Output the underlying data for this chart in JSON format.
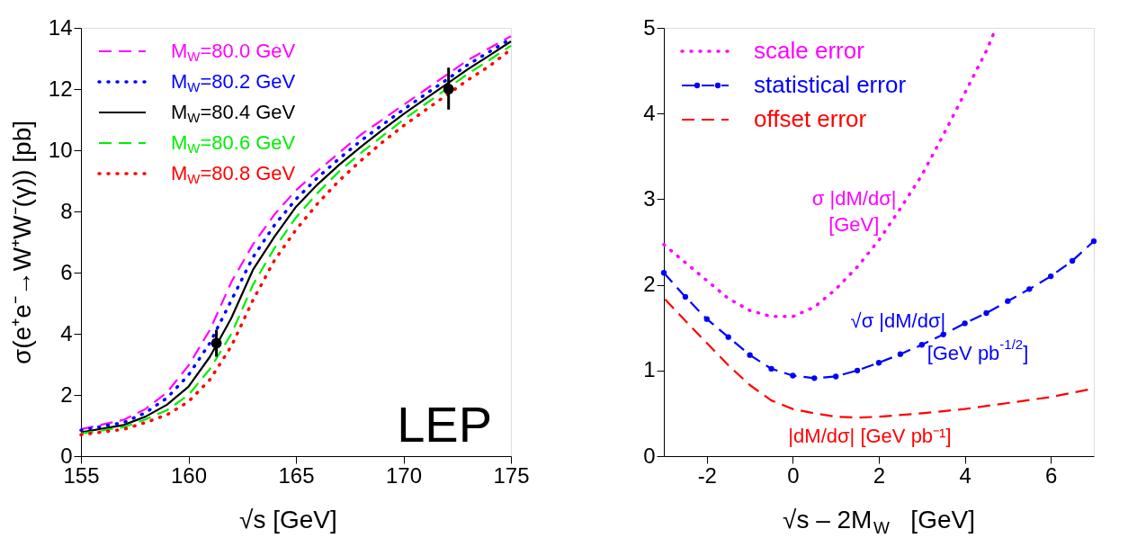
{
  "chart_data": [
    {
      "type": "line",
      "xlabel": "√s   [GeV]",
      "ylabel": "σ(e⁺e⁻→W⁺W⁻(γ))   [pb]",
      "xlim": [
        155,
        175
      ],
      "xticks": [
        155,
        160,
        165,
        170,
        175
      ],
      "ylim": [
        0,
        14
      ],
      "yticks": [
        0,
        2,
        4,
        6,
        8,
        10,
        12,
        14
      ],
      "grid": false,
      "legend": "top left",
      "x": [
        155,
        157,
        158,
        159,
        160,
        161,
        162,
        163,
        164,
        165,
        166,
        167,
        168,
        169,
        170,
        171,
        172,
        173,
        174,
        175
      ],
      "series": [
        {
          "name": "M$_{W}$=80.0 GeV",
          "color": "#ff00ff",
          "line_style": "dashed",
          "values": [
            0.88,
            1.19,
            1.54,
            2.08,
            2.96,
            4.13,
            5.7,
            6.92,
            7.9,
            8.69,
            9.32,
            9.91,
            10.5,
            10.99,
            11.48,
            11.97,
            12.46,
            12.95,
            13.34,
            13.73
          ]
        },
        {
          "name": "M$_{W}$=80.2 GeV",
          "color": "#0000ff",
          "line_style": "dotted",
          "values": [
            0.85,
            1.1,
            1.42,
            1.9,
            2.65,
            3.7,
            5.1,
            6.5,
            7.55,
            8.4,
            9.1,
            9.72,
            10.3,
            10.82,
            11.33,
            11.82,
            12.3,
            12.8,
            13.22,
            13.65
          ]
        },
        {
          "name": "M$_{W}$=80.4 GeV",
          "color": "#000000",
          "line_style": "solid",
          "values": [
            0.78,
            1.02,
            1.29,
            1.68,
            2.27,
            3.25,
            4.52,
            6.09,
            7.17,
            8.15,
            8.88,
            9.52,
            10.1,
            10.65,
            11.18,
            11.67,
            12.16,
            12.65,
            13.1,
            13.56
          ]
        },
        {
          "name": "M$_{W}$=80.6 GeV",
          "color": "#00ee00",
          "line_style": "dashed",
          "values": [
            0.74,
            0.95,
            1.2,
            1.5,
            2.0,
            2.85,
            4.0,
            5.6,
            6.8,
            7.8,
            8.6,
            9.3,
            9.9,
            10.45,
            11.0,
            11.5,
            12.0,
            12.5,
            12.95,
            13.42
          ]
        },
        {
          "name": "M$_{W}$=80.8 GeV",
          "color": "#ff0000",
          "line_style": "dotted",
          "values": [
            0.7,
            0.88,
            1.1,
            1.35,
            1.78,
            2.5,
            3.6,
            5.1,
            6.4,
            7.4,
            8.25,
            9.0,
            9.65,
            10.25,
            10.8,
            11.3,
            11.8,
            12.3,
            12.75,
            13.3
          ]
        },
        {
          "type": "scatter",
          "color": "#000000",
          "marker": "circle",
          "x": [
            161.3,
            172.1
          ],
          "values": [
            3.69,
            12.0
          ],
          "errors": [
            [
              3.25,
              4.13
            ],
            [
              11.33,
              12.7
            ]
          ]
        }
      ],
      "annotations": [
        "LEP"
      ]
    },
    {
      "type": "line",
      "xlabel": "√s – 2M$_{W}$   [GeV]",
      "xlim": [
        -3,
        7
      ],
      "xticks": [
        -2,
        0,
        2,
        4,
        6
      ],
      "ylim": [
        0,
        5
      ],
      "yticks": [
        0,
        1,
        2,
        3,
        4,
        5
      ],
      "grid": false,
      "legend": "top left",
      "series": [
        {
          "name": "scale error",
          "color": "#ff00ff",
          "line_style": "dotted",
          "x": [
            -3,
            -2,
            -1.5,
            -1,
            -0.5,
            0,
            0.5,
            1,
            1.5,
            2,
            2.5,
            3,
            3.5,
            4,
            4.5,
            4.7
          ],
          "values": [
            2.47,
            2.05,
            1.84,
            1.7,
            1.63,
            1.63,
            1.74,
            1.95,
            2.21,
            2.52,
            2.89,
            3.28,
            3.75,
            4.24,
            4.73,
            4.97
          ]
        },
        {
          "name": "statistical error",
          "color": "#0000ff",
          "line_style": "dashed",
          "marker": "circle",
          "x": [
            -3,
            -2.5,
            -2,
            -1.5,
            -1,
            -0.5,
            0,
            0.5,
            1,
            1.5,
            2,
            2.5,
            3,
            3.5,
            4,
            4.5,
            5,
            5.5,
            6,
            6.5,
            7
          ],
          "values": [
            2.14,
            1.86,
            1.6,
            1.39,
            1.18,
            1.02,
            0.94,
            0.91,
            0.93,
            1.0,
            1.09,
            1.19,
            1.3,
            1.42,
            1.55,
            1.67,
            1.81,
            1.95,
            2.1,
            2.28,
            2.51
          ]
        },
        {
          "name": "offset error",
          "color": "#ff0000",
          "line_style": "dashed",
          "x": [
            -2.97,
            -2.5,
            -2,
            -1.5,
            -1,
            -0.5,
            0,
            0.5,
            1,
            1.5,
            2,
            3,
            4,
            5,
            6,
            7
          ],
          "values": [
            1.83,
            1.58,
            1.32,
            1.06,
            0.83,
            0.65,
            0.55,
            0.5,
            0.46,
            0.45,
            0.46,
            0.5,
            0.55,
            0.62,
            0.69,
            0.79
          ]
        }
      ],
      "annotations": [
        "σ |dM/dσ|",
        "[GeV]",
        "√σ |dM/dσ|",
        "[GeV pb$^{-1/2}$]",
        "|dM/dσ|   [GeV pb⁻¹]"
      ]
    }
  ]
}
